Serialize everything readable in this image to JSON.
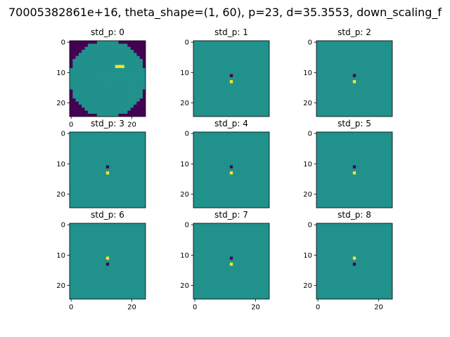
{
  "figure": {
    "suptitle": "70005382861e+16, theta_shape=(1, 60), p=23, d=35.3553, down_scaling_f"
  },
  "colors": {
    "background": "#ffffff",
    "axis": "#000000",
    "viridis_low": "#440154",
    "viridis_mid": "#21918c",
    "viridis_high": "#fde725",
    "viridis_cyan_shade": "#1f968b"
  },
  "chart_data": [
    {
      "type": "heatmap",
      "title": "std_p: 0",
      "colormap": "viridis",
      "xlim": [
        -0.5,
        24.5
      ],
      "ylim": [
        24.5,
        -0.5
      ],
      "x_ticks": [
        0,
        20
      ],
      "y_ticks": [
        0,
        10,
        20
      ],
      "grid_size": 25,
      "background": "disk",
      "disk_center": [
        12,
        12
      ],
      "disk_radius": 12.6,
      "low_points": [],
      "high_points": [
        [
          15,
          8
        ],
        [
          16,
          8
        ],
        [
          17,
          8
        ]
      ],
      "faint_points": [
        [
          7,
          7
        ],
        [
          12,
          11
        ],
        [
          12,
          13
        ]
      ]
    },
    {
      "type": "heatmap",
      "title": "std_p: 1",
      "colormap": "viridis",
      "xlim": [
        -0.5,
        24.5
      ],
      "ylim": [
        24.5,
        -0.5
      ],
      "x_ticks": [],
      "y_ticks": [
        0,
        10,
        20
      ],
      "grid_size": 25,
      "background": "uniform",
      "low_points": [
        [
          12,
          11
        ]
      ],
      "high_points": [
        [
          12,
          13
        ]
      ]
    },
    {
      "type": "heatmap",
      "title": "std_p: 2",
      "colormap": "viridis",
      "xlim": [
        -0.5,
        24.5
      ],
      "ylim": [
        24.5,
        -0.5
      ],
      "x_ticks": [],
      "y_ticks": [
        0,
        10,
        20
      ],
      "grid_size": 25,
      "background": "uniform",
      "low_points": [
        [
          12,
          11
        ]
      ],
      "high_points": [
        [
          12,
          13
        ]
      ]
    },
    {
      "type": "heatmap",
      "title": "std_p: 3",
      "colormap": "viridis",
      "xlim": [
        -0.5,
        24.5
      ],
      "ylim": [
        24.5,
        -0.5
      ],
      "x_ticks": [],
      "y_ticks": [
        0,
        10,
        20
      ],
      "grid_size": 25,
      "background": "uniform",
      "low_points": [
        [
          12,
          11
        ]
      ],
      "high_points": [
        [
          12,
          13
        ]
      ]
    },
    {
      "type": "heatmap",
      "title": "std_p: 4",
      "colormap": "viridis",
      "xlim": [
        -0.5,
        24.5
      ],
      "ylim": [
        24.5,
        -0.5
      ],
      "x_ticks": [],
      "y_ticks": [
        0,
        10,
        20
      ],
      "grid_size": 25,
      "background": "uniform",
      "low_points": [
        [
          12,
          11
        ]
      ],
      "high_points": [
        [
          12,
          13
        ]
      ]
    },
    {
      "type": "heatmap",
      "title": "std_p: 5",
      "colormap": "viridis",
      "xlim": [
        -0.5,
        24.5
      ],
      "ylim": [
        24.5,
        -0.5
      ],
      "x_ticks": [],
      "y_ticks": [
        0,
        10,
        20
      ],
      "grid_size": 25,
      "background": "uniform",
      "low_points": [
        [
          12,
          11
        ]
      ],
      "high_points": [
        [
          12,
          13
        ]
      ]
    },
    {
      "type": "heatmap",
      "title": "std_p: 6",
      "colormap": "viridis",
      "xlim": [
        -0.5,
        24.5
      ],
      "ylim": [
        24.5,
        -0.5
      ],
      "x_ticks": [
        0,
        20
      ],
      "y_ticks": [
        0,
        10,
        20
      ],
      "grid_size": 25,
      "background": "uniform",
      "low_points": [
        [
          12,
          13
        ]
      ],
      "high_points": [
        [
          12,
          11
        ]
      ]
    },
    {
      "type": "heatmap",
      "title": "std_p: 7",
      "colormap": "viridis",
      "xlim": [
        -0.5,
        24.5
      ],
      "ylim": [
        24.5,
        -0.5
      ],
      "x_ticks": [
        0,
        20
      ],
      "y_ticks": [
        0,
        10,
        20
      ],
      "grid_size": 25,
      "background": "uniform",
      "low_points": [
        [
          12,
          11
        ]
      ],
      "high_points": [
        [
          12,
          13
        ]
      ]
    },
    {
      "type": "heatmap",
      "title": "std_p: 8",
      "colormap": "viridis",
      "xlim": [
        -0.5,
        24.5
      ],
      "ylim": [
        24.5,
        -0.5
      ],
      "x_ticks": [
        0,
        20
      ],
      "y_ticks": [
        0,
        10,
        20
      ],
      "grid_size": 25,
      "background": "uniform",
      "low_points": [
        [
          12,
          13
        ]
      ],
      "high_points": [
        [
          12,
          11
        ]
      ]
    }
  ]
}
